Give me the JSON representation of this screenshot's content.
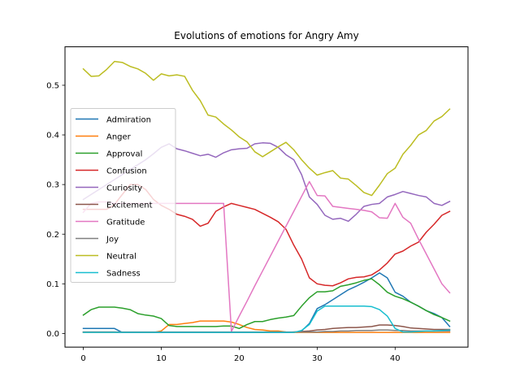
{
  "chart_data": {
    "type": "line",
    "title": "Evolutions of emotions for Angry Amy",
    "xlabel": "",
    "ylabel": "",
    "xlim": [
      -2.35,
      49.35
    ],
    "ylim": [
      -0.0275,
      0.5775
    ],
    "xticks": [
      0,
      10,
      20,
      30,
      40
    ],
    "yticks": [
      0.0,
      0.1,
      0.2,
      0.3,
      0.4,
      0.5
    ],
    "xtick_labels": [
      "0",
      "10",
      "20",
      "30",
      "40"
    ],
    "ytick_labels": [
      "0.0",
      "0.1",
      "0.2",
      "0.3",
      "0.4",
      "0.5"
    ],
    "grid": false,
    "legend_position": "center-left",
    "x": [
      0,
      1,
      2,
      3,
      4,
      5,
      6,
      7,
      8,
      9,
      10,
      11,
      12,
      13,
      14,
      15,
      16,
      17,
      18,
      19,
      20,
      21,
      22,
      23,
      24,
      25,
      26,
      27,
      28,
      29,
      30,
      31,
      32,
      33,
      34,
      35,
      36,
      37,
      38,
      39,
      40,
      41,
      42,
      43,
      44,
      45,
      46,
      47
    ],
    "series": [
      {
        "name": "Admiration",
        "color": "#1f77b4",
        "values": [
          0.01,
          0.01,
          0.01,
          0.01,
          0.01,
          0.002,
          0.002,
          0.002,
          0.002,
          0.002,
          0.002,
          0.002,
          0.002,
          0.002,
          0.002,
          0.002,
          0.002,
          0.002,
          0.002,
          0.002,
          0.002,
          0.002,
          0.002,
          0.002,
          0.002,
          0.002,
          0.002,
          0.002,
          0.005,
          0.02,
          0.05,
          0.058,
          0.068,
          0.078,
          0.088,
          0.095,
          0.103,
          0.112,
          0.122,
          0.112,
          0.083,
          0.075,
          0.063,
          0.055,
          0.046,
          0.04,
          0.032,
          0.014
        ]
      },
      {
        "name": "Anger",
        "color": "#ff7f0e",
        "values": [
          0.002,
          0.002,
          0.002,
          0.002,
          0.002,
          0.002,
          0.002,
          0.002,
          0.002,
          0.002,
          0.005,
          0.018,
          0.018,
          0.02,
          0.022,
          0.025,
          0.025,
          0.025,
          0.025,
          0.023,
          0.018,
          0.012,
          0.008,
          0.007,
          0.005,
          0.005,
          0.003,
          0.002,
          0.002,
          0.002,
          0.002,
          0.002,
          0.002,
          0.002,
          0.002,
          0.002,
          0.002,
          0.002,
          0.002,
          0.002,
          0.002,
          0.002,
          0.002,
          0.002,
          0.002,
          0.002,
          0.002,
          0.002
        ]
      },
      {
        "name": "Approval",
        "color": "#2ca02c",
        "values": [
          0.037,
          0.048,
          0.053,
          0.053,
          0.053,
          0.051,
          0.048,
          0.04,
          0.037,
          0.035,
          0.03,
          0.016,
          0.014,
          0.014,
          0.014,
          0.014,
          0.014,
          0.014,
          0.015,
          0.015,
          0.01,
          0.018,
          0.024,
          0.024,
          0.028,
          0.031,
          0.033,
          0.036,
          0.055,
          0.072,
          0.084,
          0.084,
          0.086,
          0.095,
          0.098,
          0.102,
          0.107,
          0.11,
          0.098,
          0.083,
          0.075,
          0.07,
          0.063,
          0.055,
          0.046,
          0.038,
          0.032,
          0.025
        ]
      },
      {
        "name": "Confusion",
        "color": "#d62728",
        "values": [
          0.25,
          0.25,
          0.25,
          0.25,
          0.26,
          0.28,
          0.3,
          0.3,
          0.29,
          0.27,
          0.258,
          0.25,
          0.24,
          0.236,
          0.23,
          0.216,
          0.222,
          0.246,
          0.255,
          0.262,
          0.258,
          0.254,
          0.25,
          0.242,
          0.234,
          0.225,
          0.21,
          0.178,
          0.15,
          0.112,
          0.1,
          0.097,
          0.096,
          0.102,
          0.11,
          0.113,
          0.114,
          0.118,
          0.128,
          0.142,
          0.16,
          0.166,
          0.176,
          0.184,
          0.204,
          0.22,
          0.238,
          0.246
        ]
      },
      {
        "name": "Curiosity",
        "color": "#9467bd",
        "values": [
          0.27,
          0.28,
          0.29,
          0.3,
          0.31,
          0.32,
          0.33,
          0.34,
          0.35,
          0.362,
          0.375,
          0.382,
          0.372,
          0.368,
          0.363,
          0.358,
          0.361,
          0.355,
          0.364,
          0.37,
          0.372,
          0.373,
          0.382,
          0.384,
          0.383,
          0.375,
          0.36,
          0.35,
          0.32,
          0.275,
          0.26,
          0.238,
          0.23,
          0.232,
          0.226,
          0.24,
          0.256,
          0.26,
          0.262,
          0.275,
          0.28,
          0.286,
          0.282,
          0.278,
          0.275,
          0.262,
          0.258,
          0.266
        ]
      },
      {
        "name": "Excitement",
        "color": "#8c564b",
        "values": [
          0.003,
          0.003,
          0.003,
          0.003,
          0.003,
          0.002,
          0.002,
          0.002,
          0.002,
          0.002,
          0.002,
          0.002,
          0.002,
          0.002,
          0.002,
          0.002,
          0.002,
          0.002,
          0.002,
          0.002,
          0.002,
          0.002,
          0.002,
          0.002,
          0.002,
          0.002,
          0.002,
          0.003,
          0.004,
          0.005,
          0.007,
          0.008,
          0.01,
          0.011,
          0.012,
          0.012,
          0.013,
          0.014,
          0.017,
          0.017,
          0.016,
          0.014,
          0.011,
          0.01,
          0.009,
          0.008,
          0.008,
          0.008
        ]
      },
      {
        "name": "Gratitude",
        "color": "#e377c2",
        "values": [
          0.244,
          0.262,
          0.265,
          0.265,
          0.262,
          0.262,
          0.262,
          0.262,
          0.262,
          0.262,
          0.262,
          0.262,
          0.262,
          0.262,
          0.262,
          0.262,
          0.262,
          0.262,
          0.262,
          0.004,
          0.035,
          0.065,
          0.096,
          0.126,
          0.156,
          0.186,
          0.216,
          0.246,
          0.276,
          0.306,
          0.278,
          0.277,
          0.256,
          0.254,
          0.252,
          0.25,
          0.248,
          0.245,
          0.233,
          0.232,
          0.262,
          0.234,
          0.222,
          0.19,
          0.16,
          0.13,
          0.1,
          0.082
        ]
      },
      {
        "name": "Joy",
        "color": "#7f7f7f",
        "values": [
          0.003,
          0.003,
          0.003,
          0.003,
          0.003,
          0.003,
          0.003,
          0.003,
          0.003,
          0.003,
          0.003,
          0.003,
          0.003,
          0.003,
          0.003,
          0.003,
          0.003,
          0.003,
          0.003,
          0.003,
          0.003,
          0.003,
          0.003,
          0.003,
          0.003,
          0.003,
          0.003,
          0.003,
          0.003,
          0.003,
          0.003,
          0.004,
          0.004,
          0.005,
          0.005,
          0.006,
          0.006,
          0.006,
          0.007,
          0.007,
          0.006,
          0.006,
          0.005,
          0.005,
          0.005,
          0.005,
          0.005,
          0.005
        ]
      },
      {
        "name": "Neutral",
        "color": "#bcbd22",
        "values": [
          0.533,
          0.518,
          0.519,
          0.532,
          0.548,
          0.546,
          0.538,
          0.533,
          0.524,
          0.51,
          0.523,
          0.519,
          0.521,
          0.518,
          0.49,
          0.469,
          0.44,
          0.436,
          0.422,
          0.41,
          0.396,
          0.386,
          0.366,
          0.356,
          0.366,
          0.376,
          0.385,
          0.37,
          0.35,
          0.333,
          0.319,
          0.324,
          0.328,
          0.313,
          0.311,
          0.298,
          0.284,
          0.278,
          0.299,
          0.322,
          0.333,
          0.361,
          0.379,
          0.4,
          0.409,
          0.428,
          0.437,
          0.452
        ]
      },
      {
        "name": "Sadness",
        "color": "#17becf",
        "values": [
          0.002,
          0.002,
          0.002,
          0.002,
          0.002,
          0.002,
          0.002,
          0.002,
          0.002,
          0.002,
          0.002,
          0.002,
          0.002,
          0.002,
          0.002,
          0.002,
          0.002,
          0.002,
          0.002,
          0.002,
          0.002,
          0.002,
          0.002,
          0.002,
          0.002,
          0.002,
          0.002,
          0.002,
          0.006,
          0.018,
          0.045,
          0.055,
          0.055,
          0.055,
          0.055,
          0.055,
          0.055,
          0.054,
          0.048,
          0.035,
          0.01,
          0.003,
          0.003,
          0.004,
          0.005,
          0.005,
          0.006,
          0.007
        ]
      }
    ]
  }
}
